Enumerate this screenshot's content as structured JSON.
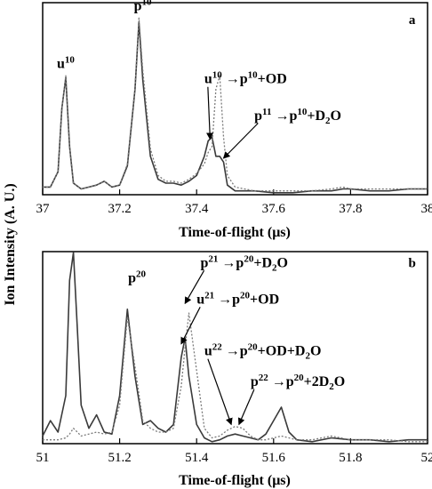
{
  "ylabel": "Ion Intensity (A. U.)",
  "chart_data": [
    {
      "type": "line",
      "panel": "a",
      "xlabel": "Time-of-flight (μs)",
      "xlim": [
        37,
        38
      ],
      "ylim": [
        0,
        1
      ],
      "grid": false,
      "x_ticks": [
        "37",
        "37.2",
        "37.4",
        "37.6",
        "37.8",
        "38"
      ],
      "x": [
        37.0,
        37.02,
        37.04,
        37.05,
        37.06,
        37.07,
        37.08,
        37.1,
        37.12,
        37.14,
        37.16,
        37.18,
        37.2,
        37.22,
        37.24,
        37.25,
        37.26,
        37.28,
        37.3,
        37.32,
        37.34,
        37.36,
        37.38,
        37.4,
        37.42,
        37.43,
        37.44,
        37.45,
        37.46,
        37.47,
        37.48,
        37.5,
        37.55,
        37.6,
        37.65,
        37.7,
        37.75,
        37.78,
        37.8,
        37.85,
        37.9,
        37.95,
        38.0
      ],
      "series": [
        {
          "values": [
            0.04,
            0.04,
            0.12,
            0.45,
            0.61,
            0.25,
            0.06,
            0.03,
            0.04,
            0.05,
            0.07,
            0.04,
            0.05,
            0.15,
            0.55,
            0.9,
            0.6,
            0.2,
            0.08,
            0.06,
            0.06,
            0.05,
            0.07,
            0.1,
            0.2,
            0.28,
            0.3,
            0.2,
            0.2,
            0.17,
            0.05,
            0.02,
            0.02,
            0.01,
            0.01,
            0.02,
            0.02,
            0.03,
            0.03,
            0.02,
            0.02,
            0.03,
            0.03
          ]
        },
        {
          "values": [
            0.04,
            0.04,
            0.12,
            0.45,
            0.62,
            0.25,
            0.06,
            0.03,
            0.04,
            0.05,
            0.07,
            0.04,
            0.05,
            0.16,
            0.56,
            0.92,
            0.65,
            0.24,
            0.1,
            0.07,
            0.07,
            0.06,
            0.08,
            0.11,
            0.16,
            0.22,
            0.25,
            0.55,
            0.62,
            0.3,
            0.1,
            0.04,
            0.02,
            0.02,
            0.02,
            0.02,
            0.03,
            0.04,
            0.03,
            0.03,
            0.03,
            0.03,
            0.03
          ]
        }
      ],
      "annotations": [
        {
          "text": "a",
          "x": 37.96,
          "y": 0.89
        },
        {
          "text": "u",
          "sup": "10",
          "x": 37.06,
          "y": 0.66
        },
        {
          "text": "p",
          "sup": "10",
          "x": 37.26,
          "y": 0.96
        },
        {
          "text": "u",
          "sup": "10",
          "rest": "→p",
          "sup2": "10",
          "rest2": "+OD",
          "x": 37.42,
          "y": 0.58,
          "arrow_to": [
            37.435,
            0.29
          ]
        },
        {
          "text": "p",
          "sup": "11",
          "rest": "→p",
          "sup2": "10",
          "rest2": "+D",
          "sub": "2",
          "rest3": "O",
          "x": 37.55,
          "y": 0.39,
          "arrow_to": [
            37.47,
            0.19
          ]
        }
      ]
    },
    {
      "type": "line",
      "panel": "b",
      "xlabel": "Time-of-flight (μs)",
      "xlim": [
        51,
        52
      ],
      "ylim": [
        0,
        1
      ],
      "grid": false,
      "x_ticks": [
        "51",
        "51.2",
        "51.4",
        "51.6",
        "51.8",
        "52"
      ],
      "x": [
        51.0,
        51.02,
        51.04,
        51.06,
        51.07,
        51.08,
        51.09,
        51.1,
        51.12,
        51.14,
        51.16,
        51.18,
        51.2,
        51.22,
        51.24,
        51.26,
        51.28,
        51.3,
        51.32,
        51.34,
        51.36,
        51.37,
        51.38,
        51.4,
        51.42,
        51.44,
        51.46,
        51.48,
        51.5,
        51.52,
        51.54,
        51.56,
        51.58,
        51.6,
        51.62,
        51.64,
        51.66,
        51.7,
        51.75,
        51.8,
        51.85,
        51.9,
        51.95,
        52.0
      ],
      "series": [
        {
          "values": [
            0.04,
            0.12,
            0.06,
            0.25,
            0.85,
            1.05,
            0.6,
            0.2,
            0.08,
            0.15,
            0.06,
            0.05,
            0.25,
            0.7,
            0.35,
            0.1,
            0.12,
            0.08,
            0.06,
            0.1,
            0.45,
            0.55,
            0.35,
            0.1,
            0.03,
            0.01,
            0.02,
            0.04,
            0.05,
            0.04,
            0.03,
            0.02,
            0.05,
            0.12,
            0.19,
            0.06,
            0.02,
            0.01,
            0.03,
            0.02,
            0.02,
            0.01,
            0.02,
            0.02
          ]
        },
        {
          "values": [
            0.02,
            0.02,
            0.02,
            0.03,
            0.05,
            0.08,
            0.06,
            0.04,
            0.05,
            0.06,
            0.05,
            0.06,
            0.2,
            0.66,
            0.4,
            0.12,
            0.08,
            0.06,
            0.06,
            0.08,
            0.3,
            0.5,
            0.68,
            0.38,
            0.08,
            0.03,
            0.04,
            0.07,
            0.09,
            0.08,
            0.04,
            0.02,
            0.02,
            0.03,
            0.04,
            0.03,
            0.02,
            0.02,
            0.04,
            0.02,
            0.02,
            0.02,
            0.01,
            0.01
          ]
        }
      ],
      "annotations": [
        {
          "text": "b",
          "x": 51.96,
          "y": 0.92
        },
        {
          "text": "p",
          "sup": "20",
          "x": 51.245,
          "y": 0.84
        },
        {
          "text": "p",
          "sup": "21",
          "rest": "→p",
          "sup2": "20",
          "rest2": "+D",
          "sub": "2",
          "rest3": "O",
          "x": 51.41,
          "y": 0.92,
          "arrow_to": [
            51.37,
            0.73
          ]
        },
        {
          "text": "u",
          "sup": "21",
          "rest": "→p",
          "sup2": "20",
          "rest2": "+OD",
          "x": 51.4,
          "y": 0.73,
          "arrow_to": [
            51.36,
            0.52
          ]
        },
        {
          "text": "u",
          "sup": "22",
          "rest": "→p",
          "sup2": "20",
          "rest2": "+OD+D",
          "sub": "2",
          "rest3": "O",
          "x": 51.42,
          "y": 0.46,
          "arrow_to": [
            51.49,
            0.1
          ]
        },
        {
          "text": "p",
          "sup": "22",
          "rest": "→p",
          "sup2": "20",
          "rest2": "+2D",
          "sub": "2",
          "rest3": "O",
          "x": 51.54,
          "y": 0.3,
          "arrow_to": [
            51.51,
            0.1
          ]
        }
      ]
    }
  ]
}
